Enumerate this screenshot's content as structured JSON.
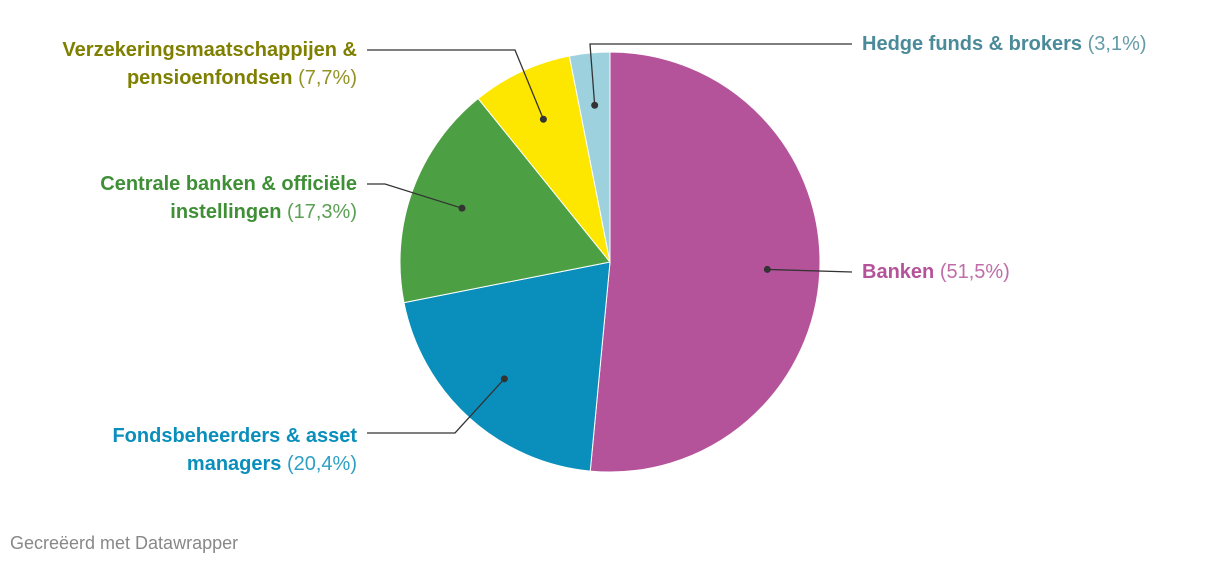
{
  "chart_data": {
    "type": "pie",
    "categories": [
      "Banken",
      "Fondsbeheerders & asset managers",
      "Centrale banken & officiële instellingen",
      "Verzekeringsmaatschappijen & pensioenfondsen",
      "Hedge funds & brokers"
    ],
    "values": [
      51.5,
      20.4,
      17.3,
      7.7,
      3.1
    ],
    "value_labels": [
      "(51,5%)",
      "(20,4%)",
      "(17,3%)",
      "(7,7%)",
      "(3,1%)"
    ],
    "colors": [
      "#b5539a",
      "#0a8fbc",
      "#4ca043",
      "#fde700",
      "#9dd1de"
    ],
    "footer": "Gecreëerd met Datawrapper"
  }
}
